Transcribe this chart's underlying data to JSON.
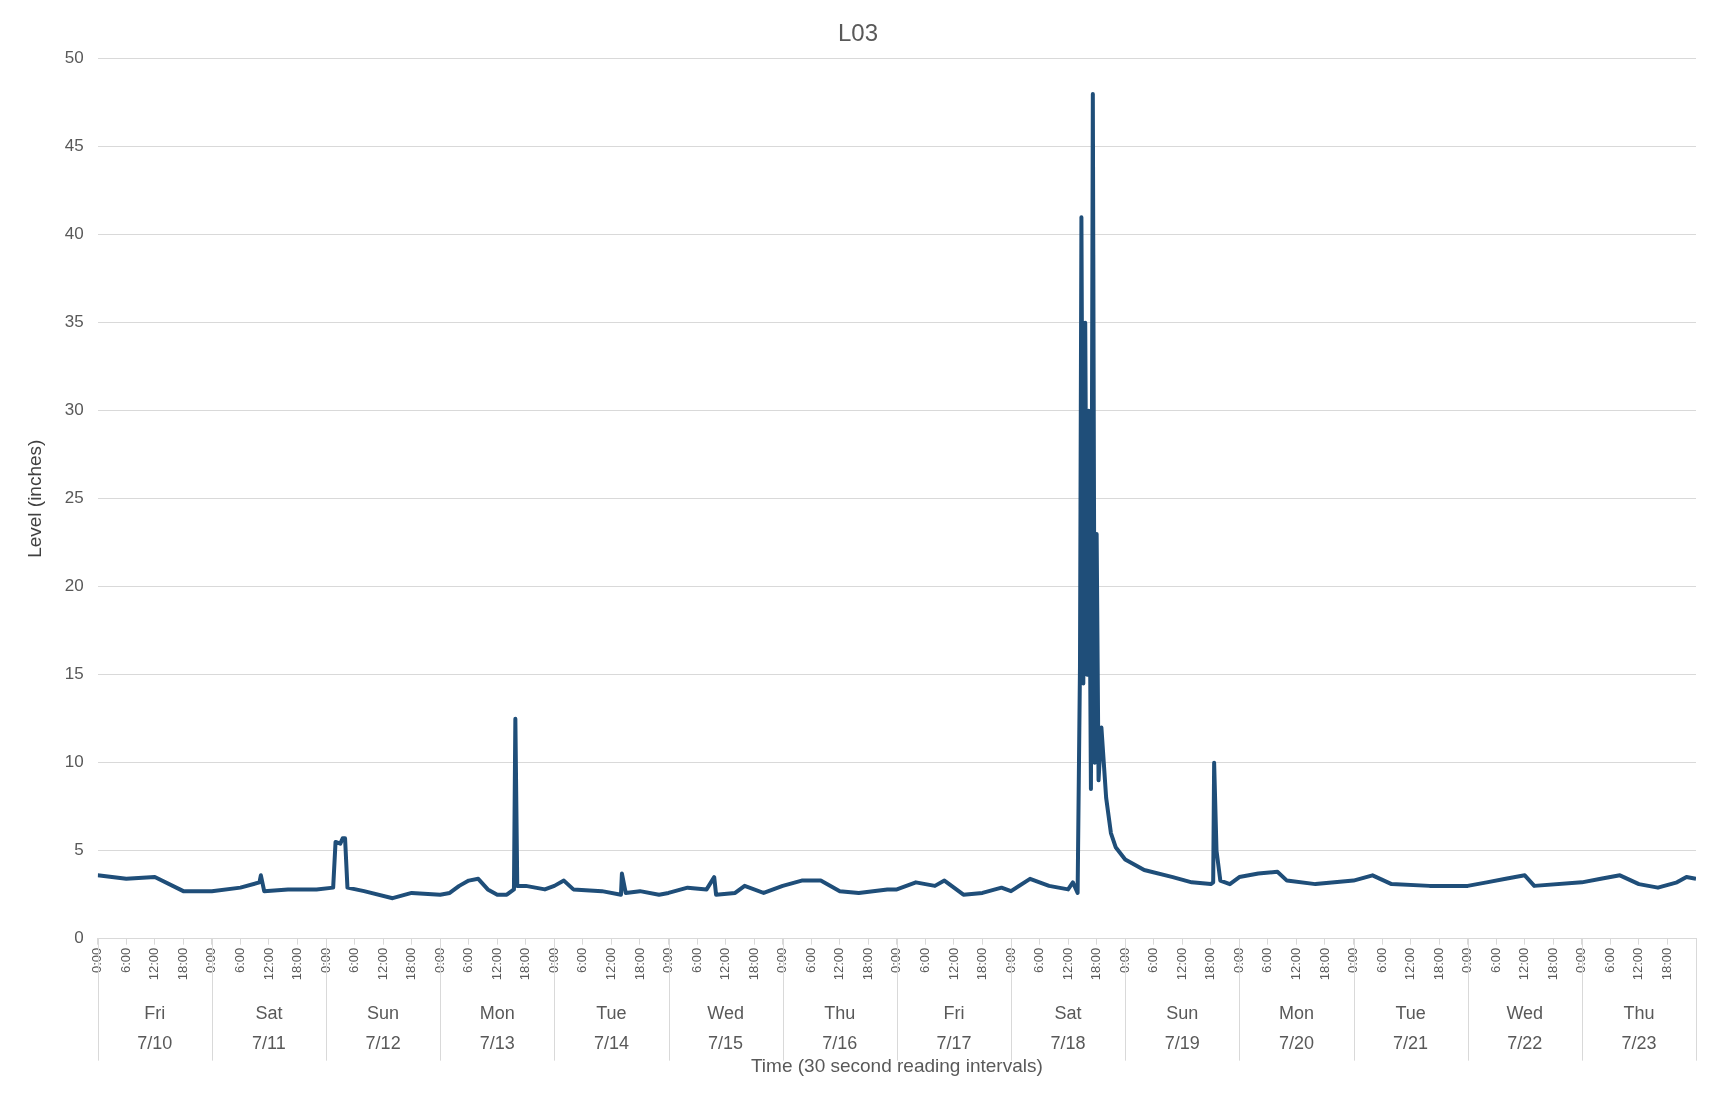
{
  "chart_data": {
    "type": "line",
    "title": "L03",
    "xlabel": "Time (30 second reading intervals)",
    "ylabel": "Level (inches)",
    "xlim": [
      "--07-10T00:00",
      "--07-24T00:00"
    ],
    "ylim": [
      0,
      50
    ],
    "yticks": [
      0,
      5,
      10,
      15,
      20,
      25,
      30,
      35,
      40,
      45,
      50
    ],
    "xticks": [
      {
        "value": "--07-10T00:00",
        "label": "0:00"
      },
      {
        "value": "--07-10T06:00",
        "label": "6:00"
      },
      {
        "value": "--07-10T12:00",
        "label": "12:00"
      },
      {
        "value": "--07-10T18:00",
        "label": "18:00"
      },
      {
        "value": "--07-11T00:00",
        "label": "0:00"
      },
      {
        "value": "--07-11T06:00",
        "label": "6:00"
      },
      {
        "value": "--07-11T12:00",
        "label": "12:00"
      },
      {
        "value": "--07-11T18:00",
        "label": "18:00"
      },
      {
        "value": "--07-12T00:00",
        "label": "0:00"
      },
      {
        "value": "--07-12T06:00",
        "label": "6:00"
      },
      {
        "value": "--07-12T12:00",
        "label": "12:00"
      },
      {
        "value": "--07-12T18:00",
        "label": "18:00"
      },
      {
        "value": "--07-13T00:00",
        "label": "0:00"
      },
      {
        "value": "--07-13T06:00",
        "label": "6:00"
      },
      {
        "value": "--07-13T12:00",
        "label": "12:00"
      },
      {
        "value": "--07-13T18:00",
        "label": "18:00"
      },
      {
        "value": "--07-14T00:00",
        "label": "0:00"
      },
      {
        "value": "--07-14T06:00",
        "label": "6:00"
      },
      {
        "value": "--07-14T12:00",
        "label": "12:00"
      },
      {
        "value": "--07-14T18:00",
        "label": "18:00"
      },
      {
        "value": "--07-15T00:00",
        "label": "0:00"
      },
      {
        "value": "--07-15T06:00",
        "label": "6:00"
      },
      {
        "value": "--07-15T12:00",
        "label": "12:00"
      },
      {
        "value": "--07-15T18:00",
        "label": "18:00"
      },
      {
        "value": "--07-16T00:00",
        "label": "0:00"
      },
      {
        "value": "--07-16T06:00",
        "label": "6:00"
      },
      {
        "value": "--07-16T12:00",
        "label": "12:00"
      },
      {
        "value": "--07-16T18:00",
        "label": "18:00"
      },
      {
        "value": "--07-17T00:00",
        "label": "0:00"
      },
      {
        "value": "--07-17T06:00",
        "label": "6:00"
      },
      {
        "value": "--07-17T12:00",
        "label": "12:00"
      },
      {
        "value": "--07-17T18:00",
        "label": "18:00"
      },
      {
        "value": "--07-18T00:00",
        "label": "0:00"
      },
      {
        "value": "--07-18T06:00",
        "label": "6:00"
      },
      {
        "value": "--07-18T12:00",
        "label": "12:00"
      },
      {
        "value": "--07-18T18:00",
        "label": "18:00"
      },
      {
        "value": "--07-19T00:00",
        "label": "0:00"
      },
      {
        "value": "--07-19T06:00",
        "label": "6:00"
      },
      {
        "value": "--07-19T12:00",
        "label": "12:00"
      },
      {
        "value": "--07-19T18:00",
        "label": "18:00"
      },
      {
        "value": "--07-20T00:00",
        "label": "0:00"
      },
      {
        "value": "--07-20T06:00",
        "label": "6:00"
      },
      {
        "value": "--07-20T12:00",
        "label": "12:00"
      },
      {
        "value": "--07-20T18:00",
        "label": "18:00"
      },
      {
        "value": "--07-21T00:00",
        "label": "0:00"
      },
      {
        "value": "--07-21T06:00",
        "label": "6:00"
      },
      {
        "value": "--07-21T12:00",
        "label": "12:00"
      },
      {
        "value": "--07-21T18:00",
        "label": "18:00"
      },
      {
        "value": "--07-22T00:00",
        "label": "0:00"
      },
      {
        "value": "--07-22T06:00",
        "label": "6:00"
      },
      {
        "value": "--07-22T12:00",
        "label": "12:00"
      },
      {
        "value": "--07-22T18:00",
        "label": "18:00"
      },
      {
        "value": "--07-23T00:00",
        "label": "0:00"
      },
      {
        "value": "--07-23T06:00",
        "label": "6:00"
      },
      {
        "value": "--07-23T12:00",
        "label": "12:00"
      },
      {
        "value": "--07-23T18:00",
        "label": "18:00"
      }
    ],
    "grid": "y",
    "legend": false,
    "marker": "none",
    "line_style": "solid",
    "annotations": [
      "Fri",
      "7/10",
      "Sat",
      "7/11",
      "Sun",
      "7/12",
      "Mon",
      "7/13",
      "Tue",
      "7/14",
      "Wed",
      "7/15",
      "Thu",
      "7/16",
      "Fri",
      "7/17",
      "Sat",
      "7/18",
      "Sun",
      "7/19",
      "Mon",
      "7/20",
      "Tue",
      "7/21",
      "Wed",
      "7/22",
      "Thu",
      "7/23"
    ],
    "series": [
      {
        "color": "#1f4e79",
        "x": [
          "--07-10T00:00",
          "--07-10T06:00",
          "--07-10T12:00",
          "--07-10T18:00",
          "--07-11T00:00",
          "--07-11T06:00",
          "--07-11T10:00",
          "--07-11T10:18",
          "--07-11T11:00",
          "--07-11T16:00",
          "--07-11T22:00",
          "--07-12T01:30",
          "--07-12T02:00",
          "--07-12T03:00",
          "--07-12T03:30",
          "--07-12T04:00",
          "--07-12T04:30",
          "--07-12T08:00",
          "--07-12T14:00",
          "--07-12T18:00",
          "--07-13T00:00",
          "--07-13T02:00",
          "--07-13T04:00",
          "--07-13T06:00",
          "--07-13T08:00",
          "--07-13T10:00",
          "--07-13T12:00",
          "--07-13T14:00",
          "--07-13T15:30",
          "--07-13T15:48",
          "--07-13T16:12",
          "--07-13T18:00",
          "--07-13T22:00",
          "--07-14T00:00",
          "--07-14T02:00",
          "--07-14T04:00",
          "--07-14T10:00",
          "--07-14T14:00",
          "--07-14T14:12",
          "--07-14T15:00",
          "--07-14T18:00",
          "--07-14T22:00",
          "--07-15T00:00",
          "--07-15T04:00",
          "--07-15T08:00",
          "--07-15T09:36",
          "--07-15T10:00",
          "--07-15T14:00",
          "--07-15T16:00",
          "--07-15T20:00",
          "--07-16T00:00",
          "--07-16T04:00",
          "--07-16T08:00",
          "--07-16T12:00",
          "--07-16T16:00",
          "--07-16T22:00",
          "--07-17T00:00",
          "--07-17T04:00",
          "--07-17T08:00",
          "--07-17T10:00",
          "--07-17T14:00",
          "--07-17T18:00",
          "--07-17T22:00",
          "--07-18T00:00",
          "--07-18T04:00",
          "--07-18T08:00",
          "--07-18T12:00",
          "--07-18T13:00",
          "--07-18T14:00",
          "--07-18T14:30",
          "--07-18T14:48",
          "--07-18T15:12",
          "--07-18T15:36",
          "--07-18T16:00",
          "--07-18T16:18",
          "--07-18T16:48",
          "--07-18T17:12",
          "--07-18T17:36",
          "--07-18T18:00",
          "--07-18T18:24",
          "--07-18T19:00",
          "--07-18T20:00",
          "--07-18T21:00",
          "--07-18T22:00",
          "--07-19T00:00",
          "--07-19T04:00",
          "--07-19T10:00",
          "--07-19T14:00",
          "--07-19T18:00",
          "--07-19T18:30",
          "--07-19T18:42",
          "--07-19T19:12",
          "--07-19T20:00",
          "--07-19T22:00",
          "--07-20T00:00",
          "--07-20T04:00",
          "--07-20T08:00",
          "--07-20T10:00",
          "--07-20T16:00",
          "--07-21T00:00",
          "--07-21T04:00",
          "--07-21T08:00",
          "--07-21T16:00",
          "--07-22T00:00",
          "--07-22T04:00",
          "--07-22T08:00",
          "--07-22T12:00",
          "--07-22T14:00",
          "--07-23T00:00",
          "--07-23T04:00",
          "--07-23T08:00",
          "--07-23T12:00",
          "--07-23T16:00",
          "--07-23T20:00",
          "--07-23T22:00",
          "--07-24T00:00"
        ],
        "values": [
          3.6,
          3.4,
          3.5,
          2.7,
          2.7,
          2.9,
          3.2,
          3.6,
          2.7,
          2.8,
          2.8,
          2.9,
          5.5,
          5.4,
          5.7,
          5.7,
          2.9,
          2.7,
          2.3,
          2.6,
          2.5,
          2.6,
          3.0,
          3.3,
          3.4,
          2.8,
          2.5,
          2.5,
          2.8,
          12.5,
          3.0,
          3.0,
          2.8,
          3.0,
          3.3,
          2.8,
          2.7,
          2.5,
          3.7,
          2.6,
          2.7,
          2.5,
          2.6,
          2.9,
          2.8,
          3.5,
          2.5,
          2.6,
          3.0,
          2.6,
          3.0,
          3.3,
          3.3,
          2.7,
          2.6,
          2.8,
          2.8,
          3.2,
          3.0,
          3.3,
          2.5,
          2.6,
          2.9,
          2.7,
          3.4,
          3.0,
          2.8,
          3.2,
          2.6,
          15.5,
          41,
          14.5,
          35,
          15,
          30,
          8.5,
          48,
          10,
          23,
          9,
          12,
          8,
          6,
          5.2,
          4.5,
          3.9,
          3.5,
          3.2,
          3.1,
          3.2,
          10,
          5,
          3.3,
          3.1,
          3.5,
          3.7,
          3.8,
          3.3,
          3.1,
          3.3,
          3.6,
          3.1,
          3.0,
          3.0,
          3.2,
          3.4,
          3.6,
          3.0,
          3.2,
          3.4,
          3.6,
          3.1,
          2.9,
          3.2,
          3.5,
          3.4
        ]
      }
    ]
  }
}
